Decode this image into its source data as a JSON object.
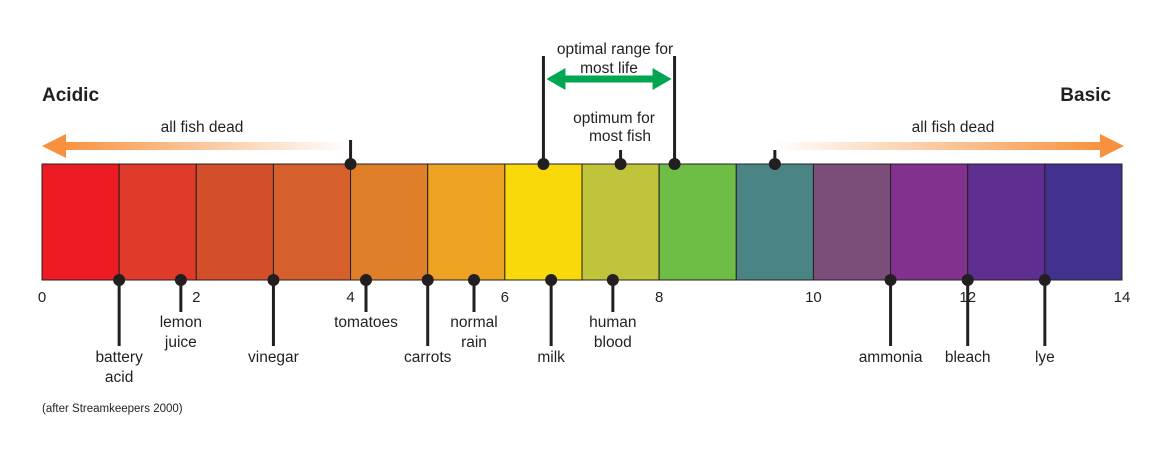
{
  "title_left": "Acidic",
  "title_right": "Basic",
  "scale": {
    "min": 0,
    "max": 14,
    "tick_labels": [
      "0",
      "2",
      "4",
      "6",
      "8",
      "10",
      "12",
      "14"
    ]
  },
  "segment_colors": [
    "#ed1c24",
    "#e03b2a",
    "#d24f2a",
    "#d6602b",
    "#df7f2a",
    "#eda222",
    "#fad90a",
    "#c0c43a",
    "#6ebd45",
    "#4a8484",
    "#7a4e78",
    "#83318f",
    "#5e2f91",
    "#43318f"
  ],
  "acid_arrow": {
    "label": "all fish dead",
    "ph": 4,
    "color": "#f7913d"
  },
  "base_arrow": {
    "label": "all fish dead",
    "ph": 9.5,
    "color": "#f7913d"
  },
  "optimal_range": {
    "label_line1": "optimal range for",
    "label_line2": "most life",
    "from_ph": 6.5,
    "to_ph": 8.2,
    "color": "#00a651"
  },
  "optimum": {
    "label_line1": "optimum for",
    "label_line2": "most fish",
    "ph": 7.5
  },
  "substances": [
    {
      "name": "battery-acid",
      "line1": "battery",
      "line2": "acid",
      "ph": 1
    },
    {
      "name": "lemon-juice",
      "line1": "lemon",
      "line2": "juice",
      "ph": 1.8
    },
    {
      "name": "vinegar",
      "line1": "vinegar",
      "line2": "",
      "ph": 3
    },
    {
      "name": "tomatoes",
      "line1": "tomatoes",
      "line2": "",
      "ph": 4.2
    },
    {
      "name": "carrots",
      "line1": "carrots",
      "line2": "",
      "ph": 5
    },
    {
      "name": "normal-rain",
      "line1": "normal",
      "line2": "rain",
      "ph": 5.6
    },
    {
      "name": "milk",
      "line1": "milk",
      "line2": "",
      "ph": 6.6
    },
    {
      "name": "human-blood",
      "line1": "human",
      "line2": "blood",
      "ph": 7.4
    },
    {
      "name": "ammonia",
      "line1": "ammonia",
      "line2": "",
      "ph": 11
    },
    {
      "name": "bleach",
      "line1": "bleach",
      "line2": "",
      "ph": 12
    },
    {
      "name": "lye",
      "line1": "lye",
      "line2": "",
      "ph": 13
    }
  ],
  "source_note": "(after Streamkeepers 2000)"
}
